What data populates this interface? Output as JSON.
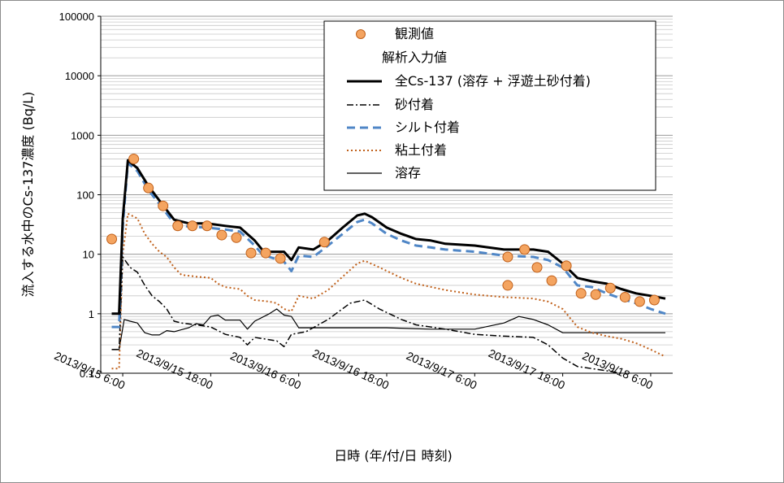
{
  "chart_data": {
    "type": "line",
    "title": "",
    "ylabel": "流入する水中のCs-137濃度 (Bq/L)",
    "xlabel": "日時 (年/付/日 時刻)",
    "y_scale": "log",
    "ylim": [
      0.1,
      100000
    ],
    "y_ticks": [
      "0.1",
      "1",
      "10",
      "100",
      "1000",
      "10000",
      "100000"
    ],
    "xlim": [
      "2013/9/15 6:00",
      "2013/9/18 6:00"
    ],
    "x_tick_values": [
      0,
      12,
      24,
      36,
      48,
      60,
      72
    ],
    "x_ticks": [
      "2013/9/15 6:00",
      "2013/9/15 18:00",
      "2013/9/16 6:00",
      "2013/9/16 18:00",
      "2013/9/17 6:00",
      "2013/9/17 18:00",
      "2013/9/18 6:00"
    ],
    "grid": true,
    "legend_position": "top-right",
    "legend": {
      "observed": "観測値",
      "input_header": "解析入力値",
      "total": "全Cs-137 (溶存 + 浮遊土砂付着)",
      "sand": "砂付着",
      "silt": "シルト付着",
      "clay": "粘土付着",
      "dissolved": "溶存"
    },
    "colors": {
      "observed_fill": "#f4a460",
      "observed_edge": "#c0601a",
      "total": "#000000",
      "sand": "#000000",
      "silt": "#4f86c6",
      "clay": "#c0601a",
      "dissolved": "#000000"
    },
    "series": [
      {
        "name": "観測値",
        "style": "markers",
        "points": [
          [
            -1.5,
            18
          ],
          [
            1.5,
            400
          ],
          [
            3.5,
            130
          ],
          [
            5.5,
            65
          ],
          [
            7.5,
            30
          ],
          [
            9.5,
            30
          ],
          [
            11.5,
            30
          ],
          [
            13.5,
            21
          ],
          [
            15.5,
            19
          ],
          [
            17.5,
            10.5
          ],
          [
            19.5,
            10.5
          ],
          [
            21.5,
            8.5
          ],
          [
            27.5,
            16
          ],
          [
            52.5,
            9
          ],
          [
            52.5,
            3
          ],
          [
            54.8,
            12
          ],
          [
            56.5,
            6
          ],
          [
            58.5,
            3.6
          ],
          [
            60.5,
            6.4
          ],
          [
            62.5,
            2.2
          ],
          [
            64.5,
            2.1
          ],
          [
            66.5,
            2.7
          ],
          [
            68.5,
            1.9
          ],
          [
            70.5,
            1.6
          ],
          [
            72.5,
            1.7
          ]
        ]
      },
      {
        "name": "全Cs-137 (溶存 + 浮遊土砂付着)",
        "style": "solid-thick",
        "points": [
          [
            -1.5,
            1
          ],
          [
            -0.5,
            1
          ],
          [
            0,
            40
          ],
          [
            0.7,
            380
          ],
          [
            2,
            280
          ],
          [
            3.5,
            140
          ],
          [
            5,
            80
          ],
          [
            7,
            38
          ],
          [
            9,
            33
          ],
          [
            11.5,
            33
          ],
          [
            14,
            30
          ],
          [
            16,
            28
          ],
          [
            18,
            17
          ],
          [
            19,
            12
          ],
          [
            20,
            11
          ],
          [
            22,
            11
          ],
          [
            23,
            8
          ],
          [
            24,
            13
          ],
          [
            26,
            12
          ],
          [
            28,
            17
          ],
          [
            30,
            28
          ],
          [
            32,
            45
          ],
          [
            33,
            48
          ],
          [
            34,
            42
          ],
          [
            36,
            28
          ],
          [
            38,
            22
          ],
          [
            40,
            18
          ],
          [
            42,
            17
          ],
          [
            44,
            15
          ],
          [
            48,
            14
          ],
          [
            52,
            12
          ],
          [
            56,
            12
          ],
          [
            58,
            11
          ],
          [
            60,
            7
          ],
          [
            62,
            4
          ],
          [
            64,
            3.5
          ],
          [
            66,
            3.2
          ],
          [
            68,
            2.6
          ],
          [
            70,
            2.2
          ],
          [
            72,
            2
          ],
          [
            74,
            1.8
          ]
        ]
      },
      {
        "name": "砂付着",
        "style": "dash-dot",
        "points": [
          [
            -1.5,
            0.25
          ],
          [
            -0.5,
            0.25
          ],
          [
            0,
            9
          ],
          [
            1,
            6
          ],
          [
            2,
            5
          ],
          [
            3,
            3
          ],
          [
            4,
            2
          ],
          [
            5,
            1.6
          ],
          [
            6,
            1.2
          ],
          [
            7,
            0.75
          ],
          [
            8,
            0.7
          ],
          [
            10,
            0.65
          ],
          [
            12,
            0.6
          ],
          [
            14,
            0.45
          ],
          [
            16,
            0.4
          ],
          [
            17,
            0.3
          ],
          [
            18,
            0.4
          ],
          [
            21,
            0.35
          ],
          [
            22,
            0.28
          ],
          [
            23,
            0.45
          ],
          [
            25,
            0.5
          ],
          [
            28,
            0.8
          ],
          [
            31,
            1.5
          ],
          [
            33,
            1.7
          ],
          [
            35,
            1.2
          ],
          [
            38,
            0.8
          ],
          [
            40,
            0.65
          ],
          [
            44,
            0.55
          ],
          [
            48,
            0.45
          ],
          [
            52,
            0.42
          ],
          [
            56,
            0.4
          ],
          [
            58,
            0.3
          ],
          [
            60,
            0.18
          ],
          [
            62,
            0.13
          ],
          [
            66,
            0.11
          ],
          [
            68,
            0.1
          ]
        ]
      },
      {
        "name": "シルト付着",
        "style": "dashed",
        "points": [
          [
            -1.5,
            0.6
          ],
          [
            -0.5,
            0.6
          ],
          [
            0,
            30
          ],
          [
            0.7,
            340
          ],
          [
            2,
            250
          ],
          [
            3.5,
            120
          ],
          [
            5,
            70
          ],
          [
            7,
            33
          ],
          [
            9,
            29
          ],
          [
            11.5,
            28
          ],
          [
            14,
            26
          ],
          [
            16,
            24
          ],
          [
            18,
            14
          ],
          [
            19,
            10
          ],
          [
            20,
            9
          ],
          [
            22,
            7.5
          ],
          [
            23,
            5.2
          ],
          [
            24,
            9.5
          ],
          [
            26,
            9
          ],
          [
            28,
            14
          ],
          [
            30,
            22
          ],
          [
            32,
            35
          ],
          [
            33,
            38
          ],
          [
            34,
            33
          ],
          [
            36,
            22
          ],
          [
            38,
            17
          ],
          [
            40,
            14
          ],
          [
            42,
            13
          ],
          [
            44,
            12
          ],
          [
            48,
            11
          ],
          [
            52,
            9.5
          ],
          [
            56,
            9
          ],
          [
            58,
            8
          ],
          [
            60,
            6
          ],
          [
            62,
            3
          ],
          [
            64,
            2.8
          ],
          [
            66,
            2.2
          ],
          [
            68,
            1.8
          ],
          [
            70,
            1.5
          ],
          [
            72,
            1.2
          ],
          [
            74,
            1
          ]
        ]
      },
      {
        "name": "粘土付着",
        "style": "dotted",
        "points": [
          [
            -1.5,
            0.12
          ],
          [
            -0.5,
            0.12
          ],
          [
            0,
            10
          ],
          [
            0.7,
            48
          ],
          [
            2,
            40
          ],
          [
            3,
            22
          ],
          [
            4,
            15
          ],
          [
            5,
            11
          ],
          [
            6,
            9
          ],
          [
            7,
            6
          ],
          [
            8,
            4.5
          ],
          [
            10,
            4.2
          ],
          [
            12,
            4
          ],
          [
            13,
            3.2
          ],
          [
            14,
            2.8
          ],
          [
            16,
            2.6
          ],
          [
            17,
            2
          ],
          [
            18,
            1.7
          ],
          [
            20,
            1.6
          ],
          [
            21,
            1.5
          ],
          [
            22,
            1.2
          ],
          [
            23,
            1.1
          ],
          [
            24,
            2
          ],
          [
            26,
            1.8
          ],
          [
            28,
            2.5
          ],
          [
            30,
            4.2
          ],
          [
            32,
            7
          ],
          [
            33,
            7.8
          ],
          [
            35,
            6
          ],
          [
            38,
            4
          ],
          [
            40,
            3.2
          ],
          [
            44,
            2.5
          ],
          [
            48,
            2.1
          ],
          [
            52,
            1.9
          ],
          [
            56,
            1.8
          ],
          [
            58,
            1.6
          ],
          [
            60,
            1.2
          ],
          [
            62,
            0.6
          ],
          [
            64,
            0.48
          ],
          [
            66,
            0.42
          ],
          [
            68,
            0.38
          ],
          [
            70,
            0.32
          ],
          [
            72,
            0.25
          ],
          [
            74,
            0.19
          ]
        ]
      },
      {
        "name": "溶存",
        "style": "solid-thin",
        "points": [
          [
            -1.5,
            0.25
          ],
          [
            -0.5,
            0.25
          ],
          [
            0.2,
            0.8
          ],
          [
            1,
            0.75
          ],
          [
            2,
            0.7
          ],
          [
            3,
            0.48
          ],
          [
            4,
            0.44
          ],
          [
            5,
            0.44
          ],
          [
            6,
            0.52
          ],
          [
            7,
            0.5
          ],
          [
            9,
            0.58
          ],
          [
            10,
            0.68
          ],
          [
            11,
            0.65
          ],
          [
            12,
            0.9
          ],
          [
            13,
            0.95
          ],
          [
            14,
            0.78
          ],
          [
            16,
            0.78
          ],
          [
            17,
            0.55
          ],
          [
            18,
            0.75
          ],
          [
            20,
            1
          ],
          [
            21,
            1.2
          ],
          [
            22,
            0.95
          ],
          [
            23,
            0.9
          ],
          [
            24,
            0.58
          ],
          [
            30,
            0.58
          ],
          [
            36,
            0.58
          ],
          [
            42,
            0.55
          ],
          [
            48,
            0.55
          ],
          [
            52,
            0.7
          ],
          [
            54,
            0.9
          ],
          [
            56,
            0.8
          ],
          [
            58,
            0.65
          ],
          [
            60,
            0.48
          ],
          [
            66,
            0.48
          ],
          [
            74,
            0.48
          ]
        ]
      }
    ]
  }
}
